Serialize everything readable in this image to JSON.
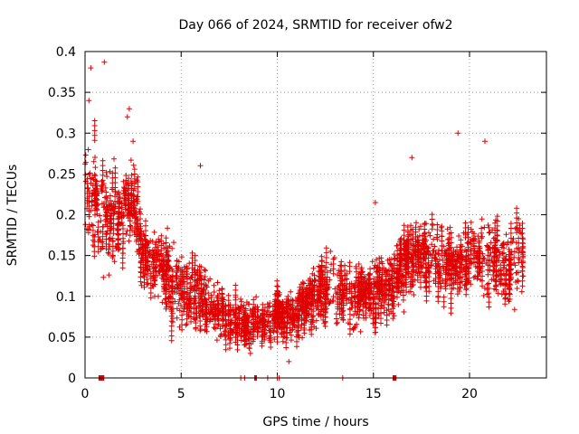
{
  "chart_data": {
    "type": "scatter",
    "title": "Day 066 of 2024, SRMTID for receiver ofw2",
    "xlabel": "GPS time / hours",
    "ylabel": "SRMTID / TECUs",
    "xlim": [
      0,
      24
    ],
    "ylim": [
      0,
      0.4
    ],
    "x_ticks": [
      0,
      5,
      10,
      15,
      20
    ],
    "y_ticks": [
      0,
      0.05,
      0.1,
      0.15,
      0.2,
      0.25,
      0.3,
      0.35,
      0.4
    ],
    "x_tick_labels": [
      "0",
      "5",
      "10",
      "15",
      "20"
    ],
    "y_tick_labels": [
      "0",
      "0.05",
      "0.1",
      "0.15",
      "0.2",
      "0.25",
      "0.3",
      "0.35",
      "0.4"
    ],
    "grid": true,
    "marker": "+",
    "color": "#e00000",
    "x_range_covered": [
      0,
      22.8
    ],
    "trend_profile": [
      {
        "x": 0.0,
        "y": 0.22,
        "spread": 0.07
      },
      {
        "x": 0.5,
        "y": 0.22,
        "spread": 0.08
      },
      {
        "x": 1.0,
        "y": 0.2,
        "spread": 0.07
      },
      {
        "x": 1.5,
        "y": 0.19,
        "spread": 0.06
      },
      {
        "x": 2.0,
        "y": 0.2,
        "spread": 0.06
      },
      {
        "x": 2.5,
        "y": 0.22,
        "spread": 0.06
      },
      {
        "x": 3.0,
        "y": 0.15,
        "spread": 0.05
      },
      {
        "x": 4.0,
        "y": 0.13,
        "spread": 0.05
      },
      {
        "x": 5.0,
        "y": 0.11,
        "spread": 0.05
      },
      {
        "x": 6.0,
        "y": 0.1,
        "spread": 0.05
      },
      {
        "x": 7.0,
        "y": 0.08,
        "spread": 0.03
      },
      {
        "x": 8.0,
        "y": 0.07,
        "spread": 0.03
      },
      {
        "x": 9.0,
        "y": 0.07,
        "spread": 0.03
      },
      {
        "x": 10.0,
        "y": 0.075,
        "spread": 0.03
      },
      {
        "x": 11.0,
        "y": 0.08,
        "spread": 0.03
      },
      {
        "x": 12.0,
        "y": 0.1,
        "spread": 0.04
      },
      {
        "x": 13.0,
        "y": 0.11,
        "spread": 0.04
      },
      {
        "x": 14.0,
        "y": 0.1,
        "spread": 0.04
      },
      {
        "x": 15.0,
        "y": 0.11,
        "spread": 0.04
      },
      {
        "x": 16.0,
        "y": 0.12,
        "spread": 0.05
      },
      {
        "x": 17.0,
        "y": 0.15,
        "spread": 0.05
      },
      {
        "x": 18.0,
        "y": 0.15,
        "spread": 0.04
      },
      {
        "x": 19.0,
        "y": 0.14,
        "spread": 0.05
      },
      {
        "x": 20.0,
        "y": 0.15,
        "spread": 0.05
      },
      {
        "x": 21.0,
        "y": 0.15,
        "spread": 0.05
      },
      {
        "x": 22.0,
        "y": 0.14,
        "spread": 0.05
      },
      {
        "x": 22.8,
        "y": 0.15,
        "spread": 0.05
      }
    ],
    "notable_points": [
      {
        "x": 0.3,
        "y": 0.38
      },
      {
        "x": 1.0,
        "y": 0.387
      },
      {
        "x": 0.2,
        "y": 0.34
      },
      {
        "x": 2.3,
        "y": 0.33
      },
      {
        "x": 2.2,
        "y": 0.32
      },
      {
        "x": 2.5,
        "y": 0.29
      },
      {
        "x": 17.0,
        "y": 0.27
      },
      {
        "x": 19.4,
        "y": 0.3
      },
      {
        "x": 20.8,
        "y": 0.29
      },
      {
        "x": 15.1,
        "y": 0.215
      },
      {
        "x": 6.0,
        "y": 0.26
      },
      {
        "x": 10.6,
        "y": 0.02
      },
      {
        "x": 8.6,
        "y": 0.03
      }
    ],
    "baseline_flags": [
      {
        "x_start": 0.7,
        "x_end": 1.0
      },
      {
        "x_start": 8.8,
        "x_end": 8.9
      },
      {
        "x_start": 16.0,
        "x_end": 16.2
      }
    ],
    "baseline_ticks_x": [
      8.1,
      8.3,
      9.5,
      10.0,
      10.1,
      13.4
    ]
  }
}
